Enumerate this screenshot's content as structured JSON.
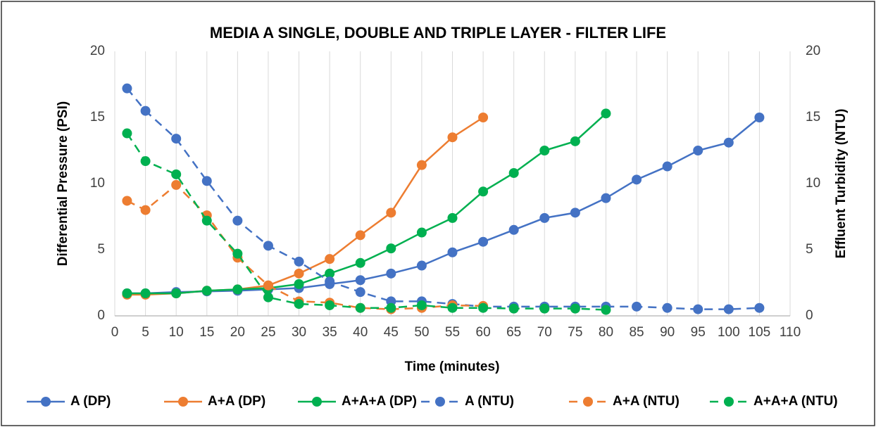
{
  "chart_data": {
    "type": "line",
    "title": "MEDIA A SINGLE, DOUBLE AND TRIPLE LAYER - FILTER LIFE",
    "x_label": "Time (minutes)",
    "y_label": "Differential Pressure (PSI)",
    "y2_label": "Effluent Turbidity (NTU)",
    "xlim": [
      0,
      110
    ],
    "xticks": [
      0,
      5,
      10,
      15,
      20,
      25,
      30,
      35,
      40,
      45,
      50,
      55,
      60,
      65,
      70,
      75,
      80,
      85,
      90,
      95,
      100,
      105,
      110
    ],
    "ylim": [
      0,
      20
    ],
    "yticks": [
      0,
      5,
      10,
      15,
      20
    ],
    "y2lim": [
      0,
      20
    ],
    "y2ticks": [
      0,
      5,
      10,
      15,
      20
    ],
    "grid": "x",
    "legend": "bottom",
    "series": [
      {
        "name": "A (DP)",
        "color": "#4472c4",
        "dashed": false,
        "x": [
          2,
          5,
          10,
          15,
          20,
          25,
          30,
          35,
          40,
          45,
          50,
          55,
          60,
          65,
          70,
          75,
          80,
          85,
          90,
          95,
          100,
          105
        ],
        "values": [
          1.7,
          1.7,
          1.8,
          1.85,
          1.9,
          2.0,
          2.1,
          2.4,
          2.7,
          3.2,
          3.8,
          4.8,
          5.6,
          6.5,
          7.4,
          7.8,
          8.9,
          10.3,
          11.3,
          12.5,
          13.1,
          15.0
        ]
      },
      {
        "name": "A+A (DP)",
        "color": "#ed7d31",
        "dashed": false,
        "x": [
          2,
          5,
          10,
          15,
          20,
          25,
          30,
          35,
          40,
          45,
          50,
          55,
          60
        ],
        "values": [
          1.6,
          1.6,
          1.7,
          1.9,
          2.0,
          2.3,
          3.2,
          4.3,
          6.1,
          7.8,
          11.4,
          13.5,
          15.0
        ]
      },
      {
        "name": "A+A+A (DP)",
        "color": "#00b050",
        "dashed": false,
        "x": [
          2,
          5,
          10,
          15,
          20,
          25,
          30,
          35,
          40,
          45,
          50,
          55,
          60,
          65,
          70,
          75,
          80
        ],
        "values": [
          1.7,
          1.7,
          1.7,
          1.9,
          2.0,
          2.1,
          2.4,
          3.2,
          4.0,
          5.1,
          6.3,
          7.4,
          9.4,
          10.8,
          12.5,
          13.2,
          15.3
        ]
      },
      {
        "name": "A (NTU)",
        "color": "#4472c4",
        "dashed": true,
        "axis": "y2",
        "x": [
          2,
          5,
          10,
          15,
          20,
          25,
          30,
          35,
          40,
          45,
          50,
          55,
          60,
          65,
          70,
          75,
          80,
          85,
          90,
          95,
          100,
          105
        ],
        "values": [
          17.2,
          15.5,
          13.4,
          10.2,
          7.2,
          5.3,
          4.1,
          2.6,
          1.8,
          1.1,
          1.1,
          0.9,
          0.7,
          0.7,
          0.7,
          0.7,
          0.7,
          0.7,
          0.6,
          0.5,
          0.5,
          0.6
        ]
      },
      {
        "name": "A+A (NTU)",
        "color": "#ed7d31",
        "dashed": true,
        "axis": "y2",
        "x": [
          2,
          5,
          10,
          15,
          20,
          25,
          30,
          35,
          40,
          45,
          50,
          55,
          60
        ],
        "values": [
          8.7,
          8.0,
          9.9,
          7.6,
          4.4,
          2.3,
          1.1,
          1.0,
          0.6,
          0.5,
          0.6,
          0.8,
          0.75
        ]
      },
      {
        "name": "A+A+A (NTU)",
        "color": "#00b050",
        "dashed": true,
        "axis": "y2",
        "x": [
          2,
          5,
          10,
          15,
          20,
          25,
          30,
          35,
          40,
          45,
          50,
          55,
          60,
          65,
          70,
          75,
          80
        ],
        "values": [
          13.8,
          11.7,
          10.7,
          7.2,
          4.7,
          1.4,
          0.9,
          0.8,
          0.6,
          0.6,
          0.8,
          0.6,
          0.6,
          0.55,
          0.55,
          0.55,
          0.45
        ]
      }
    ]
  }
}
